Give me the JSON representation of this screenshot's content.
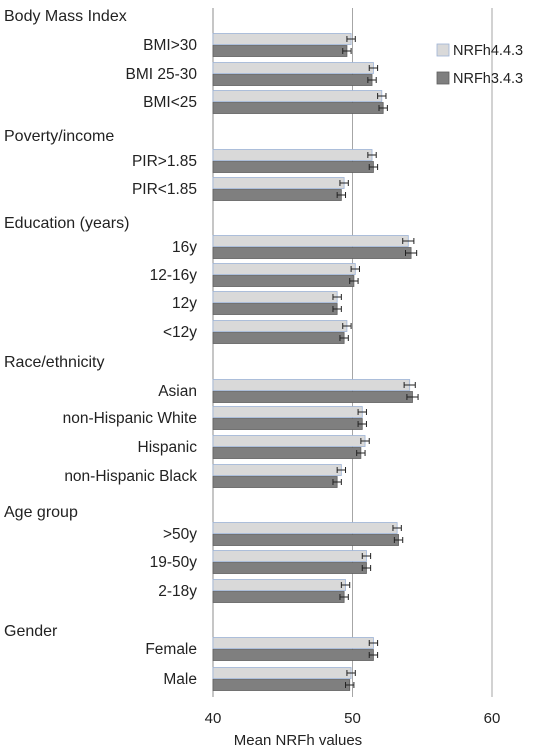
{
  "chart_data": {
    "type": "bar",
    "orientation": "horizontal",
    "xlabel": "Mean NRFh values",
    "xlim": [
      40,
      60
    ],
    "xticks": [
      40,
      50,
      60
    ],
    "grid": "vertical line at 50",
    "legend_position": "top-right",
    "error_bars": true,
    "series": [
      {
        "name": "NRFh4.4.3",
        "color": "#d9d9d9"
      },
      {
        "name": "NRFh3.4.3",
        "color": "#7f7f7f"
      }
    ],
    "groups": [
      {
        "title": "Body Mass Index",
        "items": [
          {
            "label": "BMI>30",
            "values": [
              49.9,
              49.6
            ],
            "errors": [
              0.3,
              0.3
            ]
          },
          {
            "label": "BMI 25-30",
            "values": [
              51.5,
              51.4
            ],
            "errors": [
              0.3,
              0.3
            ]
          },
          {
            "label": "BMI<25",
            "values": [
              52.1,
              52.2
            ],
            "errors": [
              0.3,
              0.3
            ]
          }
        ]
      },
      {
        "title": "Poverty/income",
        "items": [
          {
            "label": "PIR>1.85",
            "values": [
              51.4,
              51.5
            ],
            "errors": [
              0.3,
              0.3
            ]
          },
          {
            "label": "PIR<1.85",
            "values": [
              49.4,
              49.2
            ],
            "errors": [
              0.3,
              0.3
            ]
          }
        ]
      },
      {
        "title": "Education (years)",
        "items": [
          {
            "label": "16y",
            "values": [
              54.0,
              54.2
            ],
            "errors": [
              0.4,
              0.4
            ]
          },
          {
            "label": "12-16y",
            "values": [
              50.2,
              50.1
            ],
            "errors": [
              0.3,
              0.3
            ]
          },
          {
            "label": "12y",
            "values": [
              48.9,
              48.9
            ],
            "errors": [
              0.3,
              0.3
            ]
          },
          {
            "label": "<12y",
            "values": [
              49.6,
              49.4
            ],
            "errors": [
              0.3,
              0.3
            ]
          }
        ]
      },
      {
        "title": "Race/ethnicity",
        "items": [
          {
            "label": "Asian",
            "values": [
              54.1,
              54.3
            ],
            "errors": [
              0.4,
              0.4
            ]
          },
          {
            "label": "non-Hispanic White",
            "values": [
              50.7,
              50.7
            ],
            "errors": [
              0.3,
              0.3
            ]
          },
          {
            "label": "Hispanic",
            "values": [
              50.9,
              50.6
            ],
            "errors": [
              0.3,
              0.3
            ]
          },
          {
            "label": "non-Hispanic Black",
            "values": [
              49.2,
              48.9
            ],
            "errors": [
              0.3,
              0.3
            ]
          }
        ]
      },
      {
        "title": "Age group",
        "items": [
          {
            "label": ">50y",
            "values": [
              53.2,
              53.3
            ],
            "errors": [
              0.3,
              0.3
            ]
          },
          {
            "label": "19-50y",
            "values": [
              51.0,
              51.0
            ],
            "errors": [
              0.3,
              0.3
            ]
          },
          {
            "label": "2-18y",
            "values": [
              49.5,
              49.4
            ],
            "errors": [
              0.3,
              0.3
            ]
          }
        ]
      },
      {
        "title": "Gender",
        "items": [
          {
            "label": "Female",
            "values": [
              51.5,
              51.5
            ],
            "errors": [
              0.3,
              0.3
            ]
          },
          {
            "label": "Male",
            "values": [
              49.9,
              49.8
            ],
            "errors": [
              0.3,
              0.3
            ]
          }
        ]
      }
    ]
  }
}
